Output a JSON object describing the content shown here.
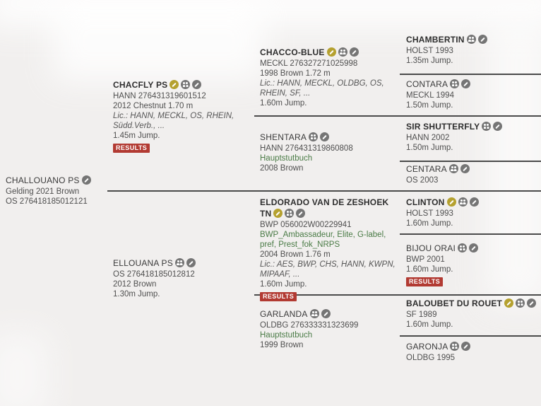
{
  "theme": {
    "background": "#f1efee",
    "divider_line": "#4b4b4b",
    "premium_icon_color": "#b5a12f",
    "gray_icon_color": "#757575",
    "results_badge_color": "#b23a32",
    "studbook_green": "#4a7b46"
  },
  "icon_legend": {
    "premium": "yellow-pencil-badge",
    "offspring": "offspring-people-icon",
    "edit": "gray-pencil-icon"
  },
  "pedigree": {
    "root": {
      "name": "CHALLOUANO PS",
      "icons": [
        "edit"
      ],
      "lines": [
        "Gelding 2021 Brown",
        "OS 276418185012121"
      ]
    },
    "nodes": {
      "chacfly": {
        "name": "CHACFLY PS",
        "icons": [
          "premium",
          "offspring",
          "edit"
        ],
        "lines": [
          "HANN 276431319601512",
          "2012 Chestnut 1.70 m",
          "Lic.: HANN, MECKL, OS, RHEIN, Südd.Verb., ...",
          "1.45m Jump."
        ],
        "results": "RESULTS"
      },
      "ellouana": {
        "name": "ELLOUANA PS",
        "icons": [
          "offspring",
          "edit"
        ],
        "lines": [
          "OS 276418185012812",
          "2012 Brown",
          "1.30m Jump."
        ]
      },
      "chaccoblue": {
        "name": "CHACCO-BLUE",
        "icons": [
          "premium",
          "offspring",
          "edit"
        ],
        "lines": [
          "MECKL 276327271025998",
          "1998 Brown 1.72 m",
          "Lic.: HANN, MECKL, OLDBG, OS, RHEIN, SF, ...",
          "1.60m Jump."
        ]
      },
      "shentara": {
        "name": "SHENTARA",
        "icons": [
          "offspring",
          "edit"
        ],
        "lines": [
          "HANN 276431319860808",
          "Hauptstutbuch",
          "2008 Brown"
        ]
      },
      "eldorado": {
        "name": "ELDORADO VAN DE ZESHOEK TN",
        "icons": [
          "premium",
          "offspring",
          "edit"
        ],
        "lines": [
          "BWP 056002W00229941",
          "BWP_Ambassadeur, Elite, G-label, pref, Prest_fok_NRPS",
          "2004 Brown 1.76 m",
          "Lic.: AES, BWP, CHS, HANN, KWPN, MIPAAF, ...",
          "1.60m Jump."
        ],
        "results": "RESULTS"
      },
      "garlanda": {
        "name": "GARLANDA",
        "icons": [
          "offspring",
          "edit"
        ],
        "lines": [
          "OLDBG 276333331323699",
          "Hauptstutbuch",
          "1999 Brown"
        ]
      },
      "chambertin": {
        "name": "CHAMBERTIN",
        "icons": [
          "offspring",
          "edit"
        ],
        "lines": [
          "HOLST 1993",
          "1.35m Jump."
        ]
      },
      "contara": {
        "name": "CONTARA",
        "icons": [
          "offspring",
          "edit"
        ],
        "lines": [
          "MECKL 1994",
          "1.50m Jump."
        ]
      },
      "sirshutterfly": {
        "name": "SIR SHUTTERFLY",
        "icons": [
          "offspring",
          "edit"
        ],
        "lines": [
          "HANN 2002",
          "1.50m Jump."
        ]
      },
      "centara": {
        "name": "CENTARA",
        "icons": [
          "offspring",
          "edit"
        ],
        "lines": [
          "OS 2003"
        ]
      },
      "clinton": {
        "name": "CLINTON",
        "icons": [
          "premium",
          "offspring",
          "edit"
        ],
        "lines": [
          "HOLST 1993",
          "1.60m Jump."
        ]
      },
      "bijouorai": {
        "name": "BIJOU ORAI",
        "icons": [
          "offspring",
          "edit"
        ],
        "lines": [
          "BWP 2001",
          "1.60m Jump."
        ],
        "results": "RESULTS"
      },
      "baloubet": {
        "name": "BALOUBET DU ROUET",
        "icons": [
          "premium",
          "offspring",
          "edit"
        ],
        "lines": [
          "SF 1989",
          "1.60m Jump."
        ]
      },
      "garonja": {
        "name": "GARONJA",
        "icons": [
          "offspring",
          "edit"
        ],
        "lines": [
          "OLDBG 1995"
        ]
      }
    }
  }
}
